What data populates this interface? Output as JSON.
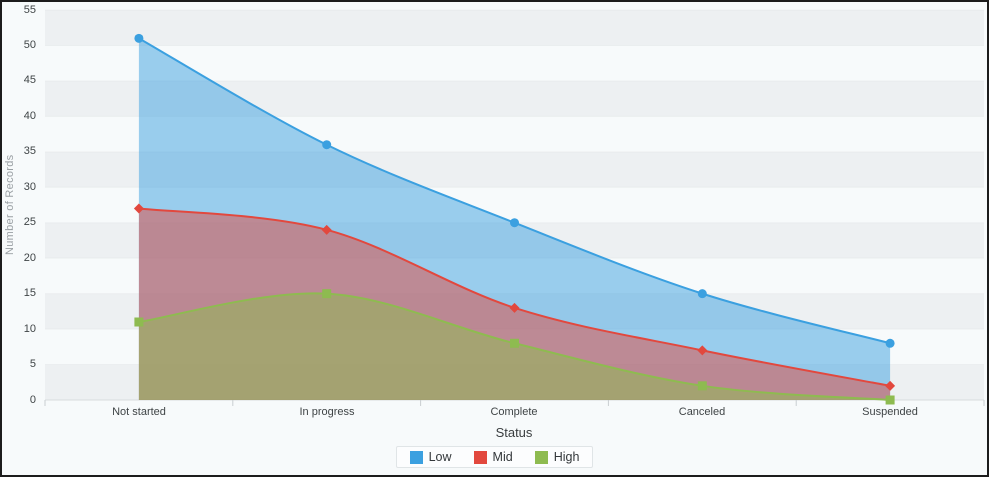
{
  "chart_data": {
    "type": "area",
    "title": "",
    "xlabel": "Status",
    "ylabel": "Number of Records",
    "categories": [
      "Not started",
      "In progress",
      "Complete",
      "Canceled",
      "Suspended"
    ],
    "series": [
      {
        "name": "Low",
        "color": "#3BA0E0",
        "marker": "circle",
        "values": [
          51,
          36,
          25,
          15,
          8
        ]
      },
      {
        "name": "Mid",
        "color": "#E2483E",
        "marker": "diamond",
        "values": [
          27,
          24,
          13,
          7,
          2
        ]
      },
      {
        "name": "High",
        "color": "#8EBB50",
        "marker": "square",
        "values": [
          11,
          15,
          8,
          2,
          0
        ]
      }
    ],
    "ylim": [
      0,
      55
    ],
    "ytick_step": 5,
    "fill_opacity": 0.5,
    "grid": "horizontal-bands",
    "band_colors": [
      "#edf0f2",
      "#f7fafb"
    ],
    "legend_position": "bottom",
    "legend_labels": [
      "Low",
      "Mid",
      "High"
    ]
  },
  "colors": {
    "background": "#f7fafb",
    "frame_border": "#1c1c1c",
    "axis_line": "#d8dcde",
    "tick_mark": "#c9ced1",
    "tick_text": "#3f4446",
    "axis_title_y_text": "#9aa0a4"
  }
}
